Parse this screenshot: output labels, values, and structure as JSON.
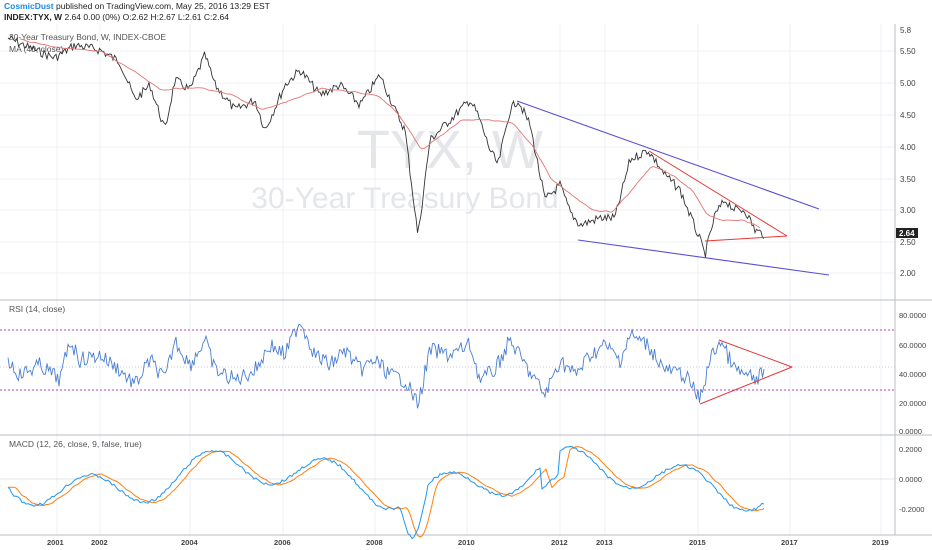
{
  "header": {
    "author": "CosmicDust",
    "published_text": "published on TradingView.com, May 25, 2016 13:29 EST",
    "symbol_line": "INDEX:TYX, W",
    "price_change": "2.64 0.00 (0%)",
    "ohlc": "O:2.62 H:2.67 L:2.61 C:2.64"
  },
  "main_pane": {
    "title": "30-Year Treasury Bond, W, INDEX-CBOE",
    "ma_label": "MA (40, close)",
    "watermark_symbol": "TYX, W",
    "watermark_name": "30-Year Treasury Bond",
    "y_ticks": [
      "5.50",
      "5.00",
      "4.50",
      "4.00",
      "3.50",
      "3.00",
      "2.50",
      "2.00"
    ],
    "top_tick": "5.8",
    "last_price": "2.64",
    "colors": {
      "price": "#333333",
      "ma": "#e57373",
      "trend": "#5b4fd6",
      "triangle": "#e53935"
    }
  },
  "rsi_pane": {
    "label": "RSI (14, close)",
    "y_ticks": [
      "80.0000",
      "60.0000",
      "40.0000",
      "20.0000",
      "0.0000"
    ],
    "overbought": 70,
    "oversold": 30,
    "colors": {
      "line": "#4a7fd0",
      "band": "#c040c0"
    }
  },
  "macd_pane": {
    "label": "MACD (12, 26, close, 9, false, true)",
    "y_ticks": [
      "0.2000",
      "0.0000",
      "-0.2000"
    ],
    "colors": {
      "macd": "#2196f3",
      "signal": "#ff7f0e"
    }
  },
  "x_axis": {
    "labels": [
      "2001",
      "2002",
      "2004",
      "2006",
      "2008",
      "2010",
      "2012",
      "2013",
      "2015",
      "2017",
      "2019"
    ]
  }
}
